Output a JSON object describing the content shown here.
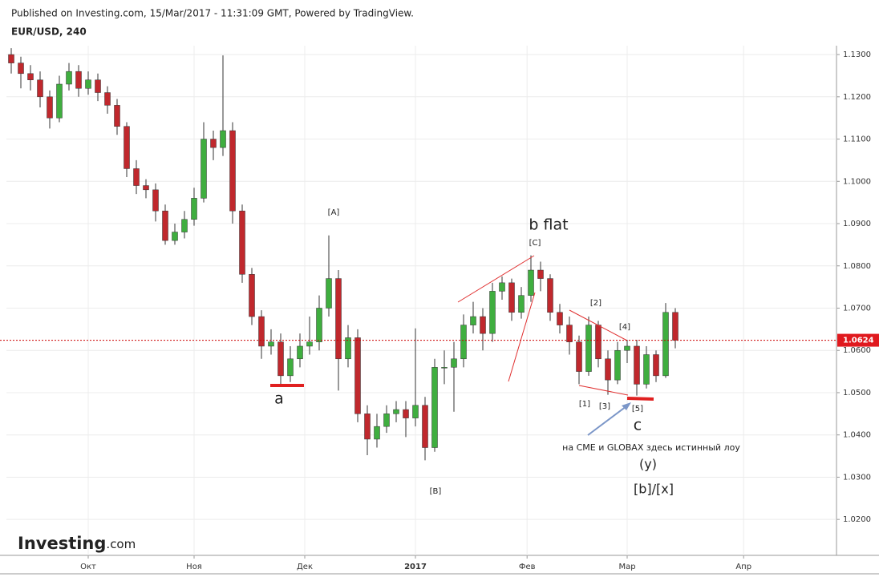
{
  "header": {
    "published": "Published on Investing.com, 15/Mar/2017 - 11:31:09 GMT, Powered by TradingView.",
    "symbol": "EUR/USD, 240"
  },
  "logo": {
    "brand": "Investing",
    "suffix": ".com"
  },
  "chart_data": {
    "type": "candlestick",
    "up_color": "#3fae3f",
    "down_color": "#c0282d",
    "wick_color": "#333333",
    "grid": true,
    "x": [
      0,
      1,
      2,
      3,
      4,
      5,
      6,
      7,
      8,
      9,
      10,
      11,
      12,
      13,
      14,
      15,
      16,
      17,
      18,
      19,
      20,
      21,
      22,
      23,
      24,
      25,
      26,
      27,
      28,
      29,
      30,
      31,
      32,
      33,
      34,
      35,
      36,
      37,
      38,
      39,
      40,
      41,
      42,
      43,
      44,
      45,
      46,
      47,
      48,
      49,
      50,
      51,
      52,
      53,
      54,
      55,
      56,
      57,
      58,
      59,
      60,
      61,
      62,
      63,
      64,
      65,
      66,
      67,
      68,
      69
    ],
    "open": [
      1.13,
      1.128,
      1.1255,
      1.124,
      1.12,
      1.115,
      1.123,
      1.126,
      1.122,
      1.124,
      1.121,
      1.118,
      1.113,
      1.103,
      1.099,
      1.098,
      1.093,
      1.086,
      1.088,
      1.091,
      1.096,
      1.11,
      1.108,
      1.112,
      1.093,
      1.078,
      1.068,
      1.061,
      1.062,
      1.054,
      1.058,
      1.061,
      1.062,
      1.07,
      1.077,
      1.058,
      1.063,
      1.045,
      1.039,
      1.042,
      1.045,
      1.046,
      1.044,
      1.047,
      1.037,
      1.056,
      1.056,
      1.058,
      1.066,
      1.068,
      1.064,
      1.074,
      1.076,
      1.069,
      1.073,
      1.079,
      1.077,
      1.069,
      1.066,
      1.062,
      1.055,
      1.066,
      1.058,
      1.053,
      1.06,
      1.061,
      1.052,
      1.059,
      1.054,
      1.069
    ],
    "high": [
      1.1315,
      1.1295,
      1.1275,
      1.126,
      1.1215,
      1.125,
      1.128,
      1.1275,
      1.126,
      1.1255,
      1.1225,
      1.1195,
      1.114,
      1.105,
      1.1005,
      1.0995,
      1.0945,
      1.09,
      1.093,
      1.0985,
      1.114,
      1.112,
      1.1298,
      1.114,
      1.0945,
      1.0795,
      1.0695,
      1.065,
      1.064,
      1.061,
      1.064,
      1.068,
      1.073,
      1.0872,
      1.079,
      1.066,
      1.065,
      1.047,
      1.045,
      1.047,
      1.048,
      1.048,
      1.0652,
      1.049,
      1.058,
      1.06,
      1.062,
      1.0685,
      1.0715,
      1.07,
      1.076,
      1.0775,
      1.077,
      1.075,
      1.0825,
      1.081,
      1.078,
      1.071,
      1.068,
      1.0635,
      1.068,
      1.067,
      1.06,
      1.062,
      1.0625,
      1.0625,
      1.061,
      1.06,
      1.0712,
      1.07
    ],
    "low": [
      1.1255,
      1.122,
      1.1215,
      1.1175,
      1.1125,
      1.114,
      1.1215,
      1.12,
      1.1205,
      1.119,
      1.116,
      1.111,
      1.101,
      1.097,
      1.096,
      1.0905,
      1.085,
      1.085,
      1.0865,
      1.0895,
      1.095,
      1.105,
      1.106,
      1.09,
      1.076,
      1.066,
      1.058,
      1.059,
      1.052,
      1.0525,
      1.056,
      1.059,
      1.06,
      1.068,
      1.0505,
      1.056,
      1.043,
      1.0352,
      1.037,
      1.0405,
      1.043,
      1.0395,
      1.042,
      1.034,
      1.036,
      1.052,
      1.0455,
      1.056,
      1.064,
      1.06,
      1.062,
      1.072,
      1.067,
      1.0675,
      1.0715,
      1.074,
      1.067,
      1.064,
      1.059,
      1.052,
      1.054,
      1.056,
      1.0495,
      1.052,
      1.057,
      1.0493,
      1.051,
      1.0525,
      1.0535,
      1.0605
    ],
    "close": [
      1.128,
      1.1255,
      1.124,
      1.12,
      1.115,
      1.123,
      1.126,
      1.122,
      1.124,
      1.121,
      1.118,
      1.113,
      1.103,
      1.099,
      1.098,
      1.093,
      1.086,
      1.088,
      1.091,
      1.096,
      1.11,
      1.108,
      1.112,
      1.093,
      1.078,
      1.068,
      1.061,
      1.062,
      1.054,
      1.058,
      1.061,
      1.062,
      1.07,
      1.077,
      1.058,
      1.063,
      1.045,
      1.039,
      1.042,
      1.045,
      1.046,
      1.044,
      1.047,
      1.037,
      1.056,
      1.056,
      1.058,
      1.066,
      1.068,
      1.064,
      1.074,
      1.076,
      1.069,
      1.073,
      1.079,
      1.077,
      1.069,
      1.066,
      1.062,
      1.055,
      1.066,
      1.058,
      1.053,
      1.06,
      1.061,
      1.052,
      1.059,
      1.054,
      1.069,
      1.0624
    ],
    "xlim": [
      -0.5,
      85.75
    ],
    "xticks": [
      {
        "value": 8,
        "label": "Окт"
      },
      {
        "value": 19,
        "label": "Ноя"
      },
      {
        "value": 30.5,
        "label": "Дек"
      },
      {
        "value": 42,
        "label": "2017"
      },
      {
        "value": 53.6,
        "label": "Фев"
      },
      {
        "value": 64,
        "label": "Мар"
      },
      {
        "value": 76.1,
        "label": "Апр"
      }
    ],
    "ylim": [
      1.0115,
      1.1321
    ],
    "yticks": [
      {
        "value": 1.02,
        "label": "1.0200"
      },
      {
        "value": 1.03,
        "label": "1.0300"
      },
      {
        "value": 1.04,
        "label": "1.0400"
      },
      {
        "value": 1.05,
        "label": "1.0500"
      },
      {
        "value": 1.06,
        "label": "1.0600"
      },
      {
        "value": 1.07,
        "label": "1.0700"
      },
      {
        "value": 1.08,
        "label": "1.0800"
      },
      {
        "value": 1.09,
        "label": "1.0900"
      },
      {
        "value": 1.1,
        "label": "1.1000"
      },
      {
        "value": 1.11,
        "label": "1.1100"
      },
      {
        "value": 1.12,
        "label": "1.1200"
      },
      {
        "value": 1.13,
        "label": "1.1300"
      }
    ],
    "annotations": [
      "[A]",
      "b flat",
      "[C]",
      "[2]",
      "[4]",
      "a",
      "[1]",
      "[3]",
      "[5]",
      "c",
      "на CME и GLOBAX здесь истинный лоу",
      "(y)",
      "[b]/[x]",
      "[B]"
    ]
  }
}
